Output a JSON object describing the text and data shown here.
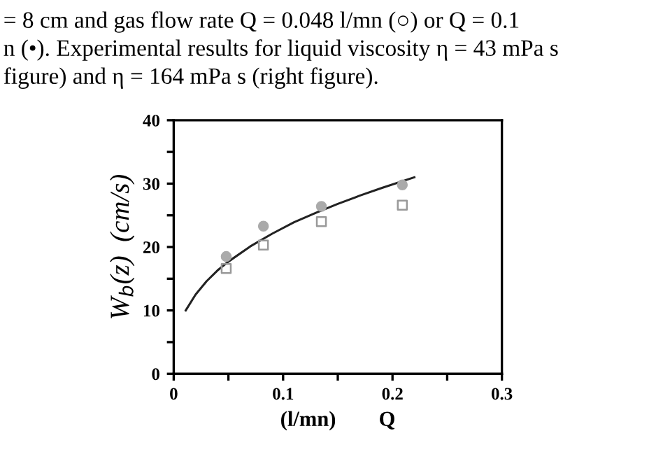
{
  "chart_data": {
    "type": "scatter",
    "xlabel": "(l/mn)        Q",
    "ylabel": "W$_{b}$(z)  (cm/s)",
    "annotations": [
      "= 8 cm and gas flow rate Q = 0.048 l/mn (○) or Q = 0.1",
      "n (•). Experimental results for liquid viscosity η = 43 mPa s",
      "figure) and η = 164 mPa s (right figure)."
    ],
    "series": [
      {
        "marker": "square",
        "color": "#999999",
        "x": [
          0.048,
          0.082,
          0.135,
          0.209
        ],
        "values": [
          16.6,
          20.3,
          24.0,
          26.6
        ]
      },
      {
        "marker": "circle",
        "color": "#aaaaaa",
        "x": [
          0.048,
          0.082,
          0.135,
          0.209
        ],
        "values": [
          18.5,
          23.3,
          26.4,
          29.8
        ]
      },
      {
        "type": "line",
        "color": "#222222",
        "x": [
          0.011,
          0.02,
          0.03,
          0.04,
          0.05,
          0.07,
          0.09,
          0.11,
          0.13,
          0.15,
          0.17,
          0.19,
          0.22
        ],
        "values": [
          10.0,
          12.5,
          14.6,
          16.3,
          17.7,
          20.1,
          22.1,
          23.9,
          25.4,
          26.8,
          28.1,
          29.3,
          31.0
        ]
      }
    ],
    "xlim": [
      0,
      0.3
    ],
    "xticks": [
      0,
      {
        "value": 0.05,
        "label": null
      },
      0.1,
      {
        "value": 0.15,
        "label": null
      },
      0.2,
      {
        "value": 0.25,
        "label": null
      },
      0.3
    ],
    "ylim": [
      0,
      40
    ],
    "yticks": [
      0,
      {
        "value": 5,
        "label": null
      },
      10,
      {
        "value": 15,
        "label": null
      },
      20,
      {
        "value": 25,
        "label": null
      },
      30,
      {
        "value": 35,
        "label": null
      },
      40
    ],
    "grid": false,
    "legend": false
  }
}
